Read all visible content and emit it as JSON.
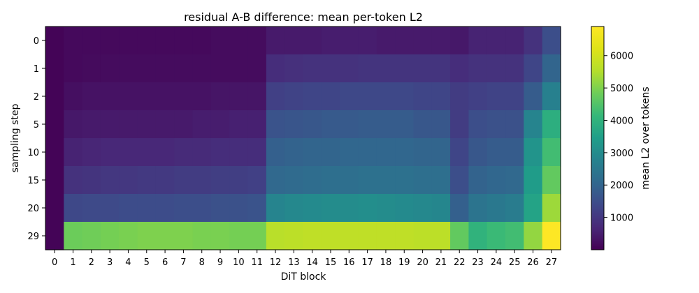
{
  "chart_data": {
    "type": "heatmap",
    "title": "residual A-B difference: mean per-token L2",
    "xlabel": "DiT block",
    "ylabel": "sampling step",
    "colorbar_label": "mean L2 over tokens",
    "colormap": "viridis",
    "vmin": 0,
    "vmax": 6900,
    "colorbar_ticks": [
      1000,
      2000,
      3000,
      4000,
      5000,
      6000
    ],
    "x": [
      "0",
      "1",
      "2",
      "3",
      "4",
      "5",
      "6",
      "7",
      "8",
      "9",
      "10",
      "11",
      "12",
      "13",
      "14",
      "15",
      "16",
      "17",
      "18",
      "19",
      "20",
      "21",
      "22",
      "23",
      "24",
      "25",
      "26",
      "27"
    ],
    "y": [
      "0",
      "1",
      "2",
      "5",
      "10",
      "15",
      "20",
      "29"
    ],
    "values": [
      [
        60,
        150,
        150,
        150,
        150,
        150,
        150,
        150,
        150,
        200,
        200,
        200,
        450,
        450,
        450,
        500,
        500,
        500,
        450,
        450,
        450,
        450,
        400,
        600,
        600,
        600,
        900,
        1500
      ],
      [
        60,
        150,
        180,
        200,
        200,
        200,
        200,
        200,
        200,
        200,
        200,
        200,
        800,
        850,
        900,
        900,
        900,
        950,
        950,
        950,
        950,
        950,
        800,
        900,
        900,
        900,
        1300,
        2000
      ],
      [
        60,
        250,
        300,
        300,
        300,
        300,
        300,
        300,
        300,
        350,
        350,
        350,
        1200,
        1250,
        1300,
        1300,
        1350,
        1350,
        1350,
        1350,
        1300,
        1300,
        1100,
        1200,
        1250,
        1250,
        1800,
        2700
      ],
      [
        60,
        400,
        450,
        450,
        450,
        450,
        450,
        450,
        500,
        500,
        550,
        550,
        1600,
        1650,
        1700,
        1750,
        1750,
        1800,
        1800,
        1800,
        1700,
        1700,
        1100,
        1500,
        1550,
        1550,
        2800,
        3900
      ],
      [
        60,
        600,
        650,
        700,
        700,
        700,
        700,
        750,
        750,
        800,
        800,
        800,
        1900,
        1950,
        2000,
        2000,
        2050,
        2050,
        2050,
        2050,
        2000,
        2000,
        1300,
        1700,
        1800,
        1800,
        3200,
        4300
      ],
      [
        60,
        900,
        950,
        1000,
        1000,
        1050,
        1050,
        1100,
        1100,
        1150,
        1150,
        1200,
        2100,
        2150,
        2200,
        2250,
        2250,
        2300,
        2300,
        2300,
        2250,
        2250,
        1500,
        1950,
        2050,
        2100,
        3400,
        4700
      ],
      [
        60,
        1350,
        1400,
        1400,
        1450,
        1450,
        1450,
        1500,
        1500,
        1550,
        1550,
        1600,
        2800,
        2900,
        2950,
        3000,
        3000,
        3050,
        3000,
        2950,
        2900,
        2850,
        1900,
        2400,
        2500,
        2600,
        3600,
        5300
      ],
      [
        60,
        4800,
        4850,
        4900,
        4950,
        5000,
        5000,
        5000,
        4950,
        4950,
        4900,
        4900,
        5600,
        5650,
        5700,
        5700,
        5700,
        5700,
        5700,
        5700,
        5650,
        5650,
        4700,
        4000,
        4200,
        4300,
        5200,
        6900
      ]
    ]
  }
}
